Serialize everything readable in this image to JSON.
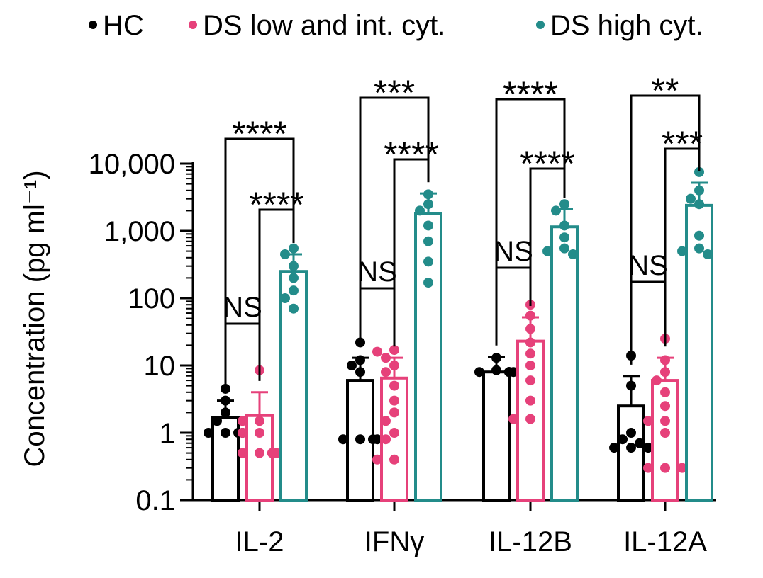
{
  "chart_data": {
    "type": "bar",
    "ylabel": "Concentration (pg ml⁻¹)",
    "yscale": "log",
    "ylim": [
      0.1,
      10000
    ],
    "yticks": [
      {
        "value": 0.1,
        "label": "0.1"
      },
      {
        "value": 1,
        "label": "1"
      },
      {
        "value": 10,
        "label": "10"
      },
      {
        "value": 100,
        "label": "100"
      },
      {
        "value": 1000,
        "label": "1,000"
      },
      {
        "value": 10000,
        "label": "10,000"
      }
    ],
    "legend_position": "top",
    "categories": [
      "IL-2",
      "IFNγ",
      "IL-12B",
      "IL-12A"
    ],
    "series": [
      {
        "name": "HC",
        "color": "#000000",
        "means": [
          1.7,
          6.0,
          8.0,
          2.5
        ],
        "error_upper": [
          3.0,
          13.0,
          13.5,
          7.0
        ],
        "points": [
          [
            4.5,
            3.0,
            2.0,
            1.5,
            1.0,
            1.0,
            1.0,
            1.0
          ],
          [
            22,
            12,
            10,
            8,
            0.8,
            0.8,
            0.8,
            0.8
          ],
          [
            13,
            8.5,
            8,
            8,
            8,
            8,
            8,
            8
          ],
          [
            14,
            5,
            1.0,
            0.8,
            0.7,
            0.6,
            0.6,
            0.6
          ]
        ]
      },
      {
        "name": "DS low and int. cyt.",
        "color": "#e6417a",
        "means": [
          1.8,
          6.5,
          23.0,
          6.0
        ],
        "error_upper": [
          4.0,
          13.0,
          52.0,
          13.0
        ],
        "points": [
          [
            8.5,
            1.5,
            1.5,
            1.0,
            1.0,
            0.5,
            0.5,
            0.5,
            0.5,
            0.5,
            0.5,
            0.5
          ],
          [
            17,
            16,
            13,
            10,
            8,
            5,
            3,
            2,
            1.5,
            1.0,
            0.8,
            0.4,
            0.4
          ],
          [
            80,
            55,
            35,
            22,
            15,
            10,
            6,
            3,
            1.6,
            1.6
          ],
          [
            25,
            12,
            8,
            6,
            4,
            2.5,
            1.5,
            1.5,
            1.0,
            0.3,
            0.3,
            0.3
          ]
        ]
      },
      {
        "name": "DS high cyt.",
        "color": "#238c8a",
        "means": [
          250,
          1800,
          1150,
          2400
        ],
        "error_upper": [
          450,
          3600,
          2100,
          5200
        ],
        "points": [
          [
            550,
            450,
            300,
            200,
            130,
            100,
            70
          ],
          [
            3500,
            2500,
            2000,
            1200,
            700,
            350,
            170
          ],
          [
            2500,
            2000,
            1200,
            800,
            550,
            500,
            450
          ],
          [
            7500,
            4000,
            3000,
            2500,
            850,
            550,
            500,
            450
          ]
        ]
      }
    ],
    "annotations": [
      {
        "category": "IL-2",
        "from_series": 0,
        "to_series": 1,
        "label": "NS"
      },
      {
        "category": "IL-2",
        "from_series": 1,
        "to_series": 2,
        "label": "****"
      },
      {
        "category": "IL-2",
        "from_series": 0,
        "to_series": 2,
        "label": "****"
      },
      {
        "category": "IFNγ",
        "from_series": 0,
        "to_series": 1,
        "label": "NS"
      },
      {
        "category": "IFNγ",
        "from_series": 1,
        "to_series": 2,
        "label": "****"
      },
      {
        "category": "IFNγ",
        "from_series": 0,
        "to_series": 2,
        "label": "***"
      },
      {
        "category": "IL-12B",
        "from_series": 0,
        "to_series": 1,
        "label": "NS"
      },
      {
        "category": "IL-12B",
        "from_series": 1,
        "to_series": 2,
        "label": "****"
      },
      {
        "category": "IL-12B",
        "from_series": 0,
        "to_series": 2,
        "label": "****"
      },
      {
        "category": "IL-12A",
        "from_series": 0,
        "to_series": 1,
        "label": "NS"
      },
      {
        "category": "IL-12A",
        "from_series": 1,
        "to_series": 2,
        "label": "***"
      },
      {
        "category": "IL-12A",
        "from_series": 0,
        "to_series": 2,
        "label": "**"
      }
    ]
  }
}
